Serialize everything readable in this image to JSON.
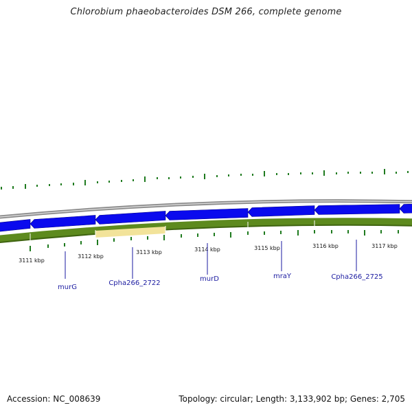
{
  "title": "Chlorobium phaeobacteroides DSM 266, complete genome",
  "footer": {
    "accession": "Accession: NC_008639",
    "topology": "Topology: circular; Length: 3,133,902 bp; Genes: 2,705"
  },
  "colors": {
    "backbone": "#8a8a8a",
    "cds": "#0a0aee",
    "cds_border": "#000088",
    "gene_track": "#5d8a1e",
    "gene_track_highlight": "#f2e39a",
    "skew_ticks": "#1e7a1e",
    "label_line": "#1a1aa0"
  },
  "ticks": [
    {
      "label": "3111 kbp"
    },
    {
      "label": "3112 kbp"
    },
    {
      "label": "3113 kbp"
    },
    {
      "label": "3114 kbp"
    },
    {
      "label": "3115 kbp"
    },
    {
      "label": "3116 kbp"
    },
    {
      "label": "3117 kbp"
    }
  ],
  "genes": [
    {
      "label": "murG"
    },
    {
      "label": "Cpha266_2722"
    },
    {
      "label": "murD"
    },
    {
      "label": "mraY"
    },
    {
      "label": "Cpha266_2725"
    }
  ]
}
